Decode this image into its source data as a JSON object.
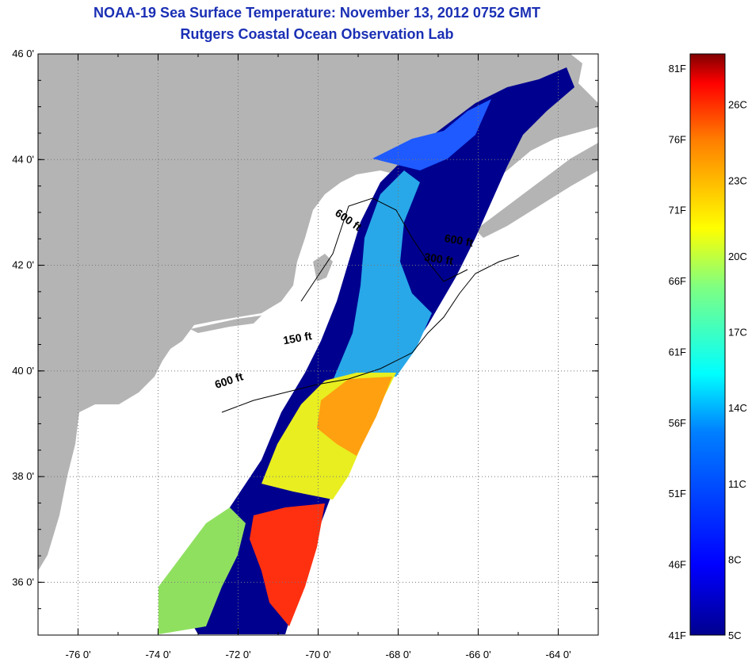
{
  "title": {
    "line1": "NOAA-19 Sea Surface Temperature:  November 13, 2012 0752 GMT",
    "line2": "Rutgers Coastal Ocean Observation Lab"
  },
  "map": {
    "lon_range": [
      -77,
      -63
    ],
    "lat_range": [
      35,
      46
    ],
    "lon_ticks": [
      {
        "value": -76,
        "label": "-76 0'"
      },
      {
        "value": -74,
        "label": "-74 0'"
      },
      {
        "value": -72,
        "label": "-72 0'"
      },
      {
        "value": -70,
        "label": "-70 0'"
      },
      {
        "value": -68,
        "label": "-68 0'"
      },
      {
        "value": -66,
        "label": "-66 0'"
      },
      {
        "value": -64,
        "label": "-64 0'"
      }
    ],
    "lat_ticks": [
      {
        "value": 46,
        "label": "46 0'"
      },
      {
        "value": 44,
        "label": "44 0'"
      },
      {
        "value": 42,
        "label": "42 0'"
      },
      {
        "value": 40,
        "label": "40 0'"
      },
      {
        "value": 38,
        "label": "38 0'"
      },
      {
        "value": 36,
        "label": "36 0'"
      }
    ],
    "contour_labels": [
      {
        "text": "600 ft",
        "lon": -69.3,
        "lat": 42.8,
        "angle": 35
      },
      {
        "text": "600 ft",
        "lon": -66.5,
        "lat": 42.4,
        "angle": 10
      },
      {
        "text": "300 ft",
        "lon": -67.0,
        "lat": 42.05,
        "angle": 8
      },
      {
        "text": "150 ft",
        "lon": -70.5,
        "lat": 40.55,
        "angle": -10
      },
      {
        "text": "600 ft",
        "lon": -72.2,
        "lat": 39.75,
        "angle": -18
      }
    ],
    "colors": {
      "land": "#b4b4b4",
      "no_data": "#ffffff",
      "cold": "#00008f",
      "cool": "#1e90ff",
      "cyan": "#00e0ff",
      "yellow": "#f0f000",
      "orange": "#ffa000",
      "red": "#ff2000"
    }
  },
  "colorbar": {
    "range_c": [
      5,
      28
    ],
    "range_f": [
      41,
      82
    ],
    "fahrenheit_ticks": [
      "81F",
      "76F",
      "71F",
      "66F",
      "61F",
      "56F",
      "51F",
      "46F",
      "41F"
    ],
    "celsius_ticks": [
      "26C",
      "23C",
      "20C",
      "17C",
      "14C",
      "11C",
      "8C",
      "5C"
    ]
  }
}
